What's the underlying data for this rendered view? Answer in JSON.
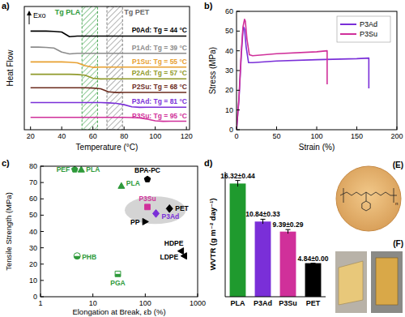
{
  "chart_data": [
    {
      "type": "line",
      "panel_label": "a)",
      "x_label": "Temperature (°C)",
      "y_label": "Heat Flow",
      "annotation": "Exo",
      "x": [
        20,
        25,
        30,
        35,
        40,
        45,
        50,
        55,
        60,
        65,
        70,
        75,
        80,
        85,
        90,
        95,
        100,
        105,
        110,
        115,
        120
      ],
      "xlim": [
        16,
        122
      ],
      "xticks": [
        20,
        40,
        60,
        80,
        100,
        120
      ],
      "ylim": [
        0,
        100
      ],
      "tick_labels": "x",
      "regions": [
        {
          "label": "Tg PLA",
          "range": [
            53,
            63
          ],
          "color": "#2e9a3a"
        },
        {
          "label": "Tg PET",
          "range": [
            69,
            79
          ],
          "color": "#666666"
        }
      ],
      "series": [
        {
          "name": "P0Ad: Tg = 44 °C",
          "color": "#000000",
          "values": [
            80,
            80,
            80,
            79.8,
            79.3,
            75.5,
            76,
            76,
            76,
            76,
            76,
            76,
            76,
            76,
            76,
            76,
            76,
            76,
            76,
            76,
            76
          ]
        },
        {
          "name": "P1Ad: Tg = 39 °C",
          "color": "#8c8c8c",
          "values": [
            67,
            67,
            66.8,
            66.3,
            63,
            61.5,
            62,
            62,
            62,
            62,
            62,
            62,
            62,
            62,
            62,
            62,
            62,
            62,
            62,
            62,
            62
          ]
        },
        {
          "name": "P1Su: Tg = 55 °C",
          "color": "#e8a030",
          "values": [
            55,
            55,
            55,
            55,
            55,
            54.8,
            54.3,
            52,
            50.6,
            50.8,
            50.8,
            50.8,
            50.8,
            50.8,
            50.8,
            50.8,
            50.8,
            50.8,
            50.8,
            50.8,
            50.8
          ]
        },
        {
          "name": "P2Ad: Tg = 57 °C",
          "color": "#8f9a2a",
          "values": [
            45,
            45,
            45,
            45,
            45,
            45,
            44.8,
            44.2,
            41.8,
            41.2,
            41.3,
            41.3,
            41.3,
            41.3,
            41.3,
            41.3,
            41.3,
            41.3,
            41.3,
            41.3,
            41.3
          ]
        },
        {
          "name": "P2Su: Tg = 68 °C",
          "color": "#6b2b1e",
          "values": [
            34,
            34,
            34,
            34,
            34,
            34,
            34,
            34,
            33.8,
            33.2,
            30.8,
            30.2,
            30.3,
            30.3,
            30.3,
            30.3,
            30.3,
            30.3,
            30.3,
            30.3,
            30.3
          ]
        },
        {
          "name": "P3Ad: Tg = 81 °C",
          "color": "#7a2fd8",
          "values": [
            22,
            22,
            22,
            22,
            22,
            22,
            22,
            22,
            22,
            22,
            21.8,
            21.4,
            20.3,
            18.6,
            18.2,
            18.3,
            18.3,
            18.3,
            18.3,
            18.3,
            18.3
          ]
        },
        {
          "name": "P3Su: Tg = 95 °C",
          "color": "#d0309a",
          "values": [
            10,
            10,
            10,
            10,
            10,
            10,
            10,
            10,
            10,
            10,
            10,
            10,
            10,
            9.9,
            9.6,
            8.6,
            7.2,
            6.8,
            6.9,
            6.9,
            6.9
          ]
        }
      ]
    },
    {
      "type": "line",
      "panel_label": "b)",
      "x_label": "Strain (%)",
      "y_label": "Stress (MPa)",
      "xlim": [
        0,
        200
      ],
      "xticks": [
        0,
        50,
        100,
        150,
        200
      ],
      "ylim": [
        0,
        60
      ],
      "yticks": [
        0,
        10,
        20,
        30,
        40,
        50,
        60
      ],
      "legend": "top-right",
      "series": [
        {
          "name": "P3Ad",
          "color": "#7a2fd8",
          "x": [
            0,
            3,
            6,
            8,
            9,
            10,
            12,
            15,
            20,
            50,
            100,
            150,
            165,
            165
          ],
          "values": [
            0,
            15,
            38,
            50,
            52,
            51,
            42,
            34,
            34,
            34.8,
            35.5,
            36,
            36.3,
            21
          ]
        },
        {
          "name": "P3Su",
          "color": "#d0309a",
          "x": [
            0,
            3,
            6,
            8,
            10,
            11,
            13,
            16,
            20,
            50,
            100,
            113,
            113
          ],
          "values": [
            0,
            16,
            40,
            52,
            56,
            55,
            46,
            38,
            37.5,
            38.5,
            39.5,
            40,
            23
          ]
        }
      ]
    },
    {
      "type": "scatter",
      "panel_label": "c)",
      "x_label": "Elongation at Break, εb (%)",
      "y_label": "Tensile Strength (MPa)",
      "log": "x",
      "xlim": [
        1,
        1000
      ],
      "xticks": [
        1,
        10,
        100,
        1000
      ],
      "ylim": [
        0,
        80
      ],
      "yticks": [
        0,
        10,
        20,
        30,
        40,
        50,
        60,
        70,
        80
      ],
      "series": [
        {
          "name": "PEF",
          "color": "#2e9a3a",
          "marker": "pentagon",
          "x": [
            4.5
          ],
          "values": [
            78
          ]
        },
        {
          "name": "PLA",
          "color": "#2e9a3a",
          "marker": "triangle-up",
          "x": [
            6
          ],
          "values": [
            78
          ]
        },
        {
          "name": "PLA",
          "color": "#2e9a3a",
          "marker": "triangle-up",
          "x": [
            35
          ],
          "values": [
            68
          ]
        },
        {
          "name": "PHB",
          "color": "#2e9a3a",
          "marker": "half-circle",
          "x": [
            5
          ],
          "values": [
            25
          ]
        },
        {
          "name": "PGA",
          "color": "#2e9a3a",
          "marker": "half-square",
          "x": [
            30
          ],
          "values": [
            14
          ]
        },
        {
          "name": "BPA-PC",
          "color": "#000000",
          "marker": "pentagon",
          "x": [
            110
          ],
          "values": [
            72
          ]
        },
        {
          "name": "PET",
          "color": "#000000",
          "marker": "diamond",
          "x": [
            290
          ],
          "values": [
            54
          ]
        },
        {
          "name": "P3Su",
          "color": "#d0309a",
          "marker": "square",
          "x": [
            110
          ],
          "values": [
            55
          ]
        },
        {
          "name": "P3Ad",
          "color": "#7a2fd8",
          "marker": "diamond",
          "x": [
            160
          ],
          "values": [
            51
          ]
        },
        {
          "name": "PP",
          "color": "#000000",
          "marker": "triangle-right",
          "x": [
            100
          ],
          "values": [
            46
          ]
        },
        {
          "name": "HDPE",
          "color": "#000000",
          "marker": "triangle-left",
          "x": [
            480
          ],
          "values": [
            28
          ]
        },
        {
          "name": "LDPE",
          "color": "#000000",
          "marker": "triangle-left",
          "x": [
            550
          ],
          "values": [
            25
          ]
        }
      ]
    },
    {
      "type": "bar",
      "panel_label": "d)",
      "y_label": "WVTR (g m⁻² day⁻¹)",
      "categories": [
        "PLA",
        "P3Ad",
        "P3Su",
        "PET"
      ],
      "values": [
        16.32,
        10.84,
        9.39,
        4.84
      ],
      "errors": [
        0.44,
        0.33,
        0.29,
        0.0
      ],
      "value_labels": [
        "16.32±0.44",
        "10.84±0.33",
        "9.39±0.29",
        "4.84±0.00"
      ],
      "colors": [
        "#1f9a2e",
        "#7a2fd8",
        "#d0309a",
        "#000000"
      ],
      "ylim": [
        0,
        18
      ],
      "tick_labels": "x",
      "data_labels": true
    }
  ],
  "photos": [
    {
      "label": "(E)",
      "annotation": "n"
    },
    {
      "label": "(F)"
    }
  ]
}
